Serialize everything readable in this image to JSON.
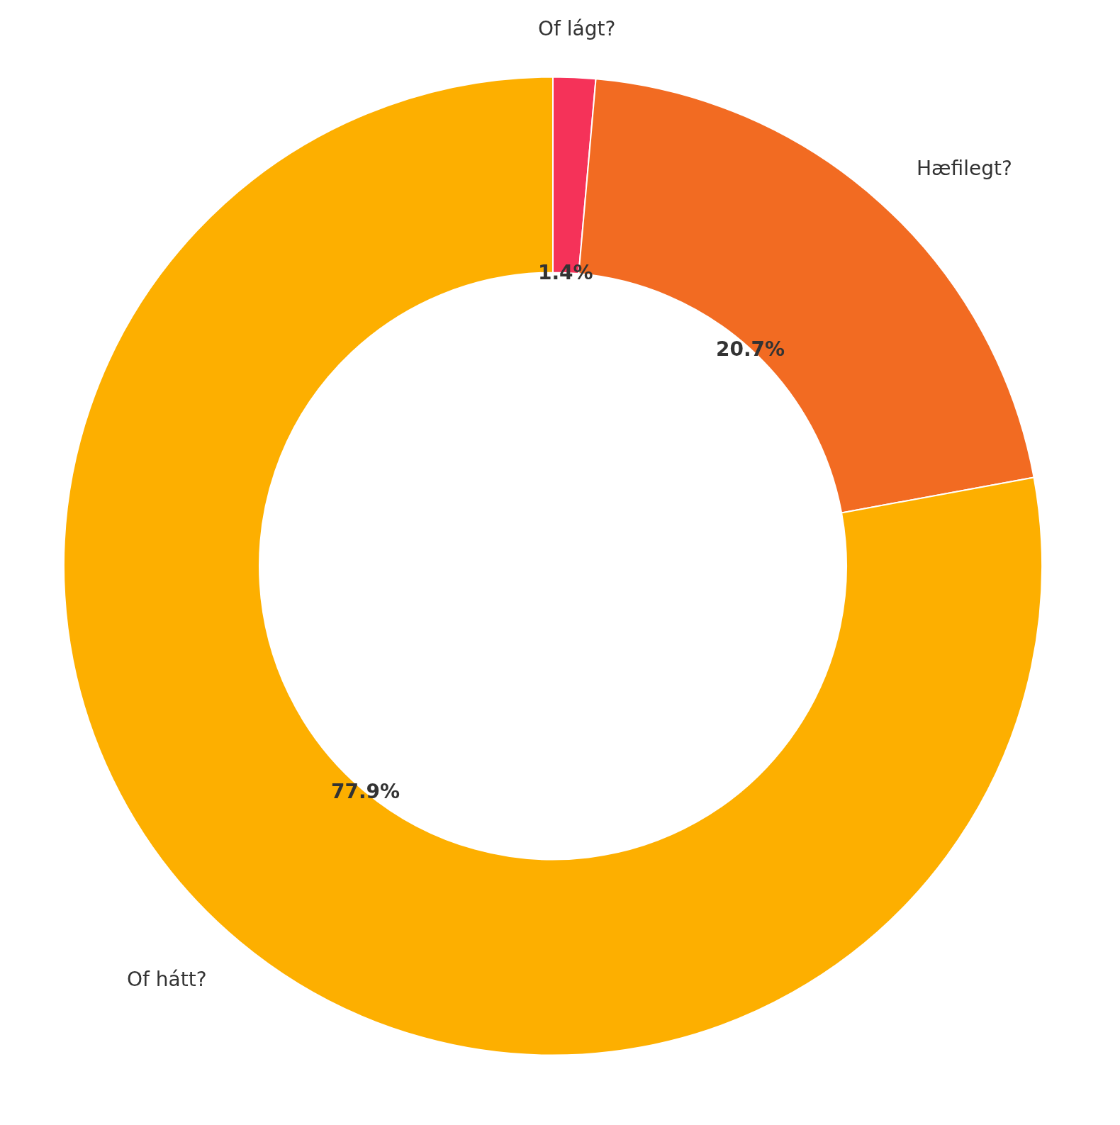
{
  "chart_data": {
    "type": "donut",
    "categories": [
      "Of lágt?",
      "Hæfilegt?",
      "Of hátt?"
    ],
    "values": [
      1.4,
      20.7,
      77.9
    ],
    "value_labels": [
      "1.4%",
      "20.7%",
      "77.9%"
    ],
    "colors": [
      "#f53259",
      "#f26b22",
      "#fdaf00"
    ]
  }
}
